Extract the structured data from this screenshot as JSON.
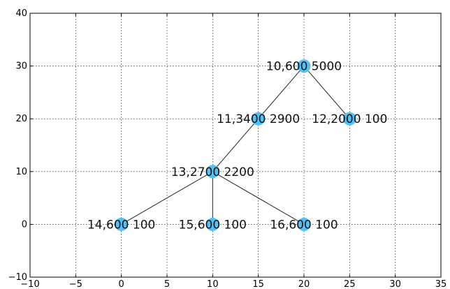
{
  "chart_data": {
    "type": "scatter",
    "title": "",
    "xlabel": "",
    "ylabel": "",
    "xlim": [
      -10,
      35
    ],
    "ylim": [
      -10,
      40
    ],
    "x_ticks": [
      -10,
      -5,
      0,
      5,
      10,
      15,
      20,
      25,
      30,
      35
    ],
    "y_ticks": [
      -10,
      0,
      10,
      20,
      30,
      40
    ],
    "x_tick_labels": [
      "−10",
      "−5",
      "0",
      "5",
      "10",
      "15",
      "20",
      "25",
      "30",
      "35"
    ],
    "y_tick_labels": [
      "−10",
      "0",
      "10",
      "20",
      "30",
      "40"
    ],
    "grid": true,
    "node_color": "#4fc3f7",
    "nodes": [
      {
        "x": 20,
        "y": 30,
        "label": "10,600 5000"
      },
      {
        "x": 15,
        "y": 20,
        "label": "11,3400 2900"
      },
      {
        "x": 25,
        "y": 20,
        "label": "12,2000 100"
      },
      {
        "x": 10,
        "y": 10,
        "label": "13,2700 2200"
      },
      {
        "x": 0,
        "y": 0,
        "label": "14,600 100"
      },
      {
        "x": 10,
        "y": 0,
        "label": "15,600 100"
      },
      {
        "x": 20,
        "y": 0,
        "label": "16,600 100"
      }
    ],
    "edges": [
      [
        0,
        1
      ],
      [
        0,
        2
      ],
      [
        1,
        3
      ],
      [
        3,
        4
      ],
      [
        3,
        5
      ],
      [
        3,
        6
      ]
    ]
  }
}
